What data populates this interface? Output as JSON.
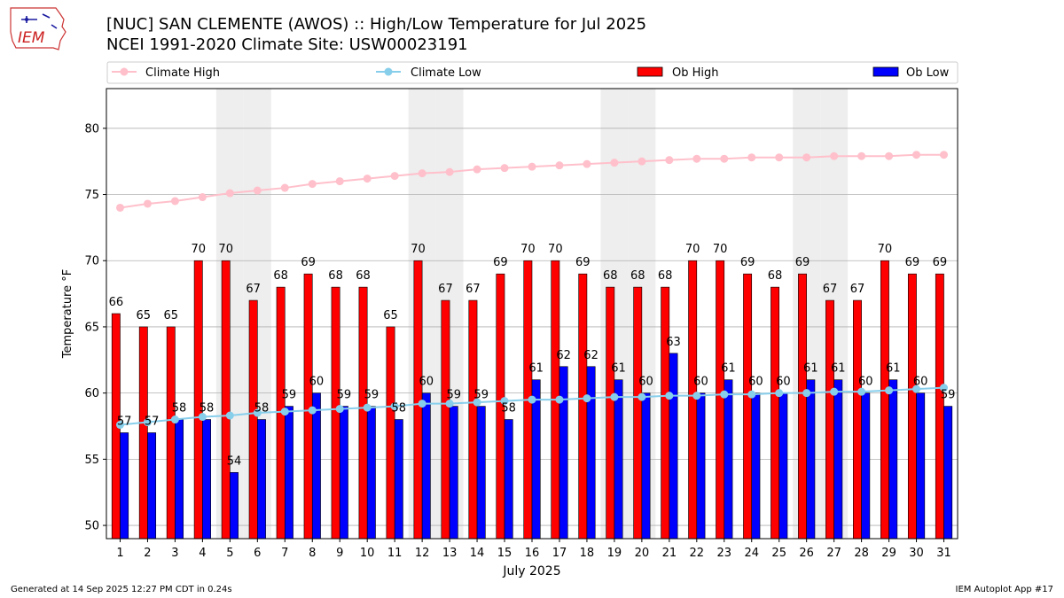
{
  "header": {
    "title_line1": "[NUC] SAN CLEMENTE (AWOS) :: High/Low Temperature for Jul 2025",
    "title_line2": "NCEI 1991-2020 Climate Site: USW00023191",
    "logo_text": "IEM"
  },
  "footer": {
    "generated": "Generated at 14 Sep 2025 12:27 PM CDT in 0.24s",
    "app": "IEM Autoplot App #17"
  },
  "colors": {
    "ob_high": "#ff0000",
    "ob_low": "#0000ff",
    "climate_high": "#ffc0cb",
    "climate_low": "#87ceeb",
    "weekend_shade": "#eeeeee",
    "grid": "#b0b0b0"
  },
  "chart_data": {
    "type": "bar",
    "title": "[NUC] SAN CLEMENTE (AWOS) :: High/Low Temperature for Jul 2025",
    "subtitle": "NCEI 1991-2020 Climate Site: USW00023191",
    "xlabel": "July 2025",
    "ylabel": "Temperature °F",
    "ylim": [
      49,
      83
    ],
    "yticks": [
      50,
      55,
      60,
      65,
      70,
      75,
      80
    ],
    "grid": true,
    "legend_placement": "top",
    "legend": [
      "Climate High",
      "Climate Low",
      "Ob High",
      "Ob Low"
    ],
    "categories": [
      1,
      2,
      3,
      4,
      5,
      6,
      7,
      8,
      9,
      10,
      11,
      12,
      13,
      14,
      15,
      16,
      17,
      18,
      19,
      20,
      21,
      22,
      23,
      24,
      25,
      26,
      27,
      28,
      29,
      30,
      31
    ],
    "shaded_days": [
      5,
      6,
      12,
      13,
      19,
      20,
      26,
      27
    ],
    "series": [
      {
        "name": "Ob High",
        "kind": "bar",
        "values": [
          66,
          65,
          65,
          70,
          70,
          67,
          68,
          69,
          68,
          68,
          65,
          70,
          67,
          67,
          69,
          70,
          70,
          69,
          68,
          68,
          68,
          70,
          70,
          69,
          68,
          69,
          67,
          67,
          70,
          69,
          69
        ]
      },
      {
        "name": "Ob Low",
        "kind": "bar",
        "values": [
          57,
          57,
          58,
          58,
          54,
          58,
          59,
          60,
          59,
          59,
          58,
          60,
          59,
          59,
          58,
          61,
          62,
          62,
          61,
          60,
          63,
          60,
          61,
          60,
          60,
          61,
          61,
          60,
          61,
          60,
          59
        ]
      },
      {
        "name": "Climate High",
        "kind": "line",
        "values": [
          74.0,
          74.3,
          74.5,
          74.8,
          75.1,
          75.3,
          75.5,
          75.8,
          76.0,
          76.2,
          76.4,
          76.6,
          76.7,
          76.9,
          77.0,
          77.1,
          77.2,
          77.3,
          77.4,
          77.5,
          77.6,
          77.7,
          77.7,
          77.8,
          77.8,
          77.8,
          77.9,
          77.9,
          77.9,
          78.0,
          78.0
        ]
      },
      {
        "name": "Climate Low",
        "kind": "line",
        "values": [
          57.6,
          57.8,
          58.0,
          58.2,
          58.3,
          58.5,
          58.6,
          58.7,
          58.8,
          58.9,
          59.0,
          59.2,
          59.2,
          59.3,
          59.4,
          59.5,
          59.5,
          59.6,
          59.7,
          59.7,
          59.8,
          59.8,
          59.9,
          59.9,
          60.0,
          60.0,
          60.1,
          60.1,
          60.2,
          60.3,
          60.4
        ]
      }
    ]
  }
}
